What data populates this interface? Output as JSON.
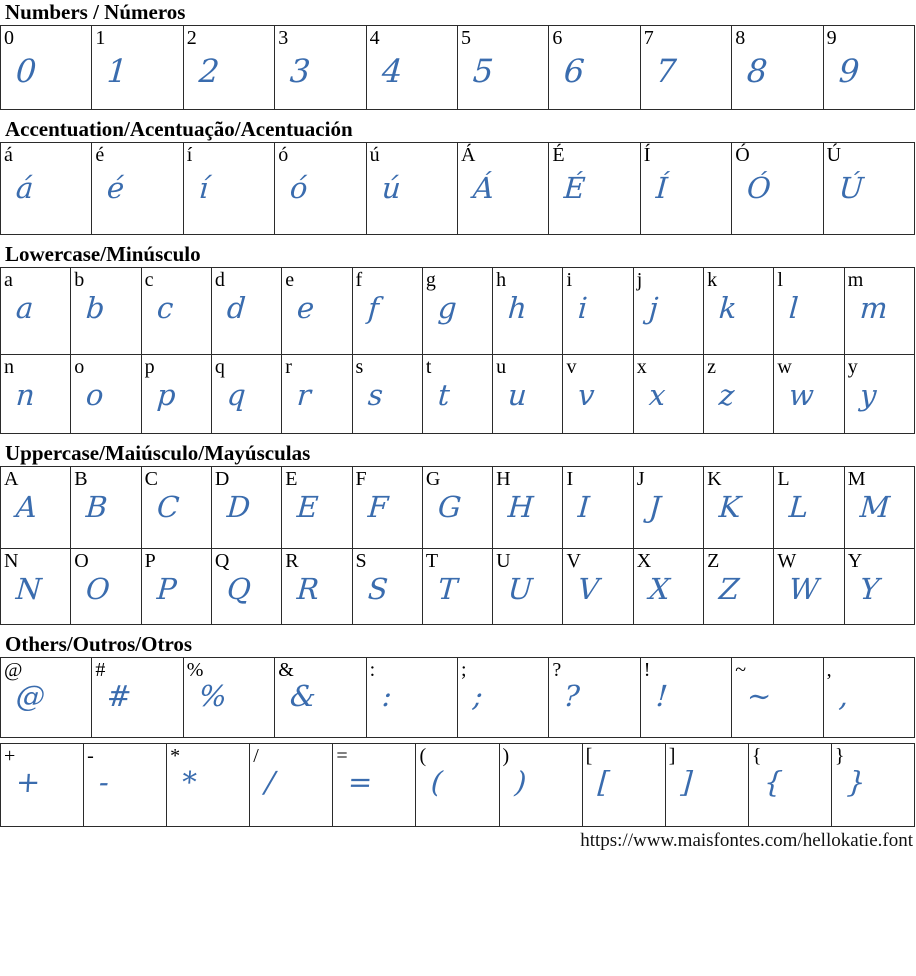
{
  "page": {
    "ink_color": "#3a6cae",
    "border_color": "#2b2b2b",
    "footer_url": "https://www.maisfontes.com/hellokatie.font"
  },
  "sections": [
    {
      "id": "numbers",
      "title": "Numbers / Números",
      "detached_rows": false,
      "rows": [
        [
          "0",
          "1",
          "2",
          "3",
          "4",
          "5",
          "6",
          "7",
          "8",
          "9"
        ]
      ]
    },
    {
      "id": "accentuation",
      "title": "Accentuation/Acentuação/Acentuación",
      "detached_rows": false,
      "rows": [
        [
          "á",
          "é",
          "í",
          "ó",
          "ú",
          "Á",
          "É",
          "Í",
          "Ó",
          "Ú"
        ]
      ]
    },
    {
      "id": "lowercase",
      "title": "Lowercase/Minúsculo",
      "detached_rows": false,
      "rows": [
        [
          "a",
          "b",
          "c",
          "d",
          "e",
          "f",
          "g",
          "h",
          "i",
          "j",
          "k",
          "l",
          "m"
        ],
        [
          "n",
          "o",
          "p",
          "q",
          "r",
          "s",
          "t",
          "u",
          "v",
          "x",
          "z",
          "w",
          "y"
        ]
      ]
    },
    {
      "id": "uppercase",
      "title": "Uppercase/Maiúsculo/Mayúsculas",
      "detached_rows": false,
      "rows": [
        [
          "A",
          "B",
          "C",
          "D",
          "E",
          "F",
          "G",
          "H",
          "I",
          "J",
          "K",
          "L",
          "M"
        ],
        [
          "N",
          "O",
          "P",
          "Q",
          "R",
          "S",
          "T",
          "U",
          "V",
          "X",
          "Z",
          "W",
          "Y"
        ]
      ]
    },
    {
      "id": "others",
      "title": "Others/Outros/Otros",
      "detached_rows": true,
      "rows": [
        [
          "@",
          "#",
          "%",
          "&",
          ":",
          ";",
          "?",
          "!",
          "~",
          ","
        ],
        [
          "+",
          "-",
          "*",
          "/",
          "=",
          "(",
          ")",
          "[",
          "]",
          "{",
          "}"
        ]
      ]
    }
  ]
}
